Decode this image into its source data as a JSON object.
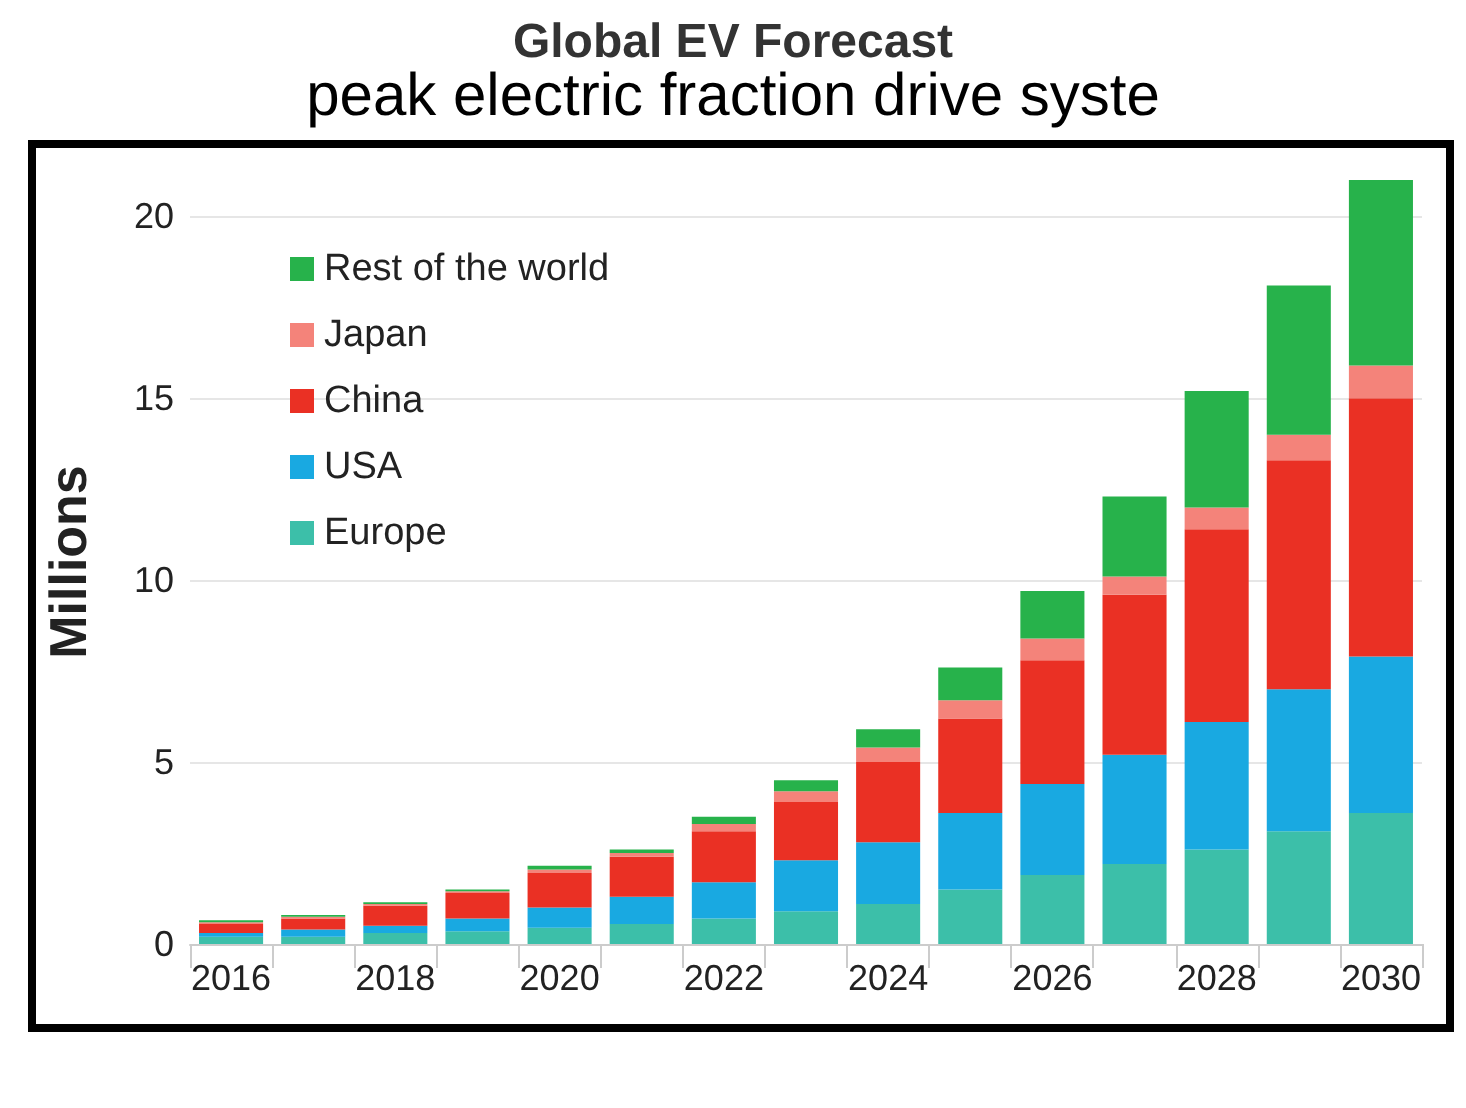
{
  "chart_data": {
    "type": "bar",
    "title": "Global EV Forecast",
    "subtitle": "peak electric fraction drive syste",
    "ylabel": "Millions",
    "categories": [
      "2016",
      null,
      "2018",
      null,
      "2020",
      null,
      "2022",
      null,
      "2024",
      null,
      "2026",
      null,
      "2028",
      null,
      "2030"
    ],
    "stacked": true,
    "ylim": [
      0,
      21
    ],
    "yticks": [
      0,
      5,
      10,
      15,
      20
    ],
    "grid": "y",
    "legend": "top left",
    "series": [
      {
        "name": "Europe",
        "color": "#3cbfa9",
        "values": [
          0.2,
          0.2,
          0.3,
          0.35,
          0.45,
          0.55,
          0.7,
          0.9,
          1.1,
          1.5,
          1.9,
          2.2,
          2.6,
          3.1,
          3.6
        ]
      },
      {
        "name": "USA",
        "color": "#19a9e1",
        "values": [
          0.1,
          0.2,
          0.2,
          0.35,
          0.55,
          0.75,
          1.0,
          1.4,
          1.7,
          2.1,
          2.5,
          3.0,
          3.5,
          3.9,
          4.3
        ]
      },
      {
        "name": "China",
        "color": "#ea3024",
        "values": [
          0.25,
          0.3,
          0.55,
          0.7,
          0.95,
          1.1,
          1.4,
          1.6,
          2.2,
          2.6,
          3.4,
          4.4,
          5.3,
          6.3,
          7.1
        ]
      },
      {
        "name": "Japan",
        "color": "#f4837a",
        "values": [
          0.05,
          0.05,
          0.05,
          0.05,
          0.1,
          0.1,
          0.2,
          0.3,
          0.4,
          0.5,
          0.6,
          0.5,
          0.6,
          0.7,
          0.9
        ]
      },
      {
        "name": "Rest of the world",
        "color": "#27b24b",
        "values": [
          0.05,
          0.05,
          0.05,
          0.05,
          0.1,
          0.1,
          0.2,
          0.3,
          0.5,
          0.9,
          1.3,
          2.2,
          3.2,
          4.1,
          5.1
        ]
      }
    ]
  }
}
